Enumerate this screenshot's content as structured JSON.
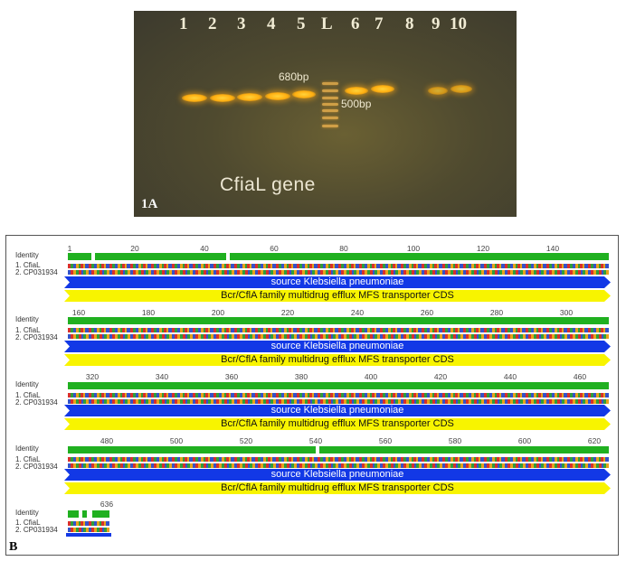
{
  "panel_a": {
    "letter": "1A",
    "lanes": [
      "1",
      "2",
      "3",
      "4",
      "5",
      "L",
      "6",
      "7",
      "8",
      "9",
      "10"
    ],
    "ladder_marker_upper": "680bp",
    "ladder_marker_lower": "500bp",
    "gene_label": "CfiaL gene"
  },
  "panel_b": {
    "letter": "B",
    "identity_label": "Identity",
    "seq1_label": "1. CfiaL",
    "seq2_label": "2. CP031934",
    "source_label": "source Klebsiella pneumoniae",
    "cds_label": "Bcr/CflA family multidrug efflux MFS transporter CDS",
    "row1_ticks": [
      "1",
      "20",
      "40",
      "60",
      "80",
      "100",
      "120",
      "140"
    ],
    "row2_ticks": [
      "160",
      "180",
      "200",
      "220",
      "240",
      "260",
      "280",
      "300"
    ],
    "row3_ticks": [
      "320",
      "340",
      "360",
      "380",
      "400",
      "420",
      "440",
      "460"
    ],
    "row4_ticks": [
      "480",
      "500",
      "520",
      "540",
      "560",
      "580",
      "600",
      "620"
    ],
    "row5_ticks": [
      "636"
    ],
    "colors": {
      "identity": "#20b020",
      "source": "#1238e6",
      "cds": "#f8f400"
    }
  }
}
